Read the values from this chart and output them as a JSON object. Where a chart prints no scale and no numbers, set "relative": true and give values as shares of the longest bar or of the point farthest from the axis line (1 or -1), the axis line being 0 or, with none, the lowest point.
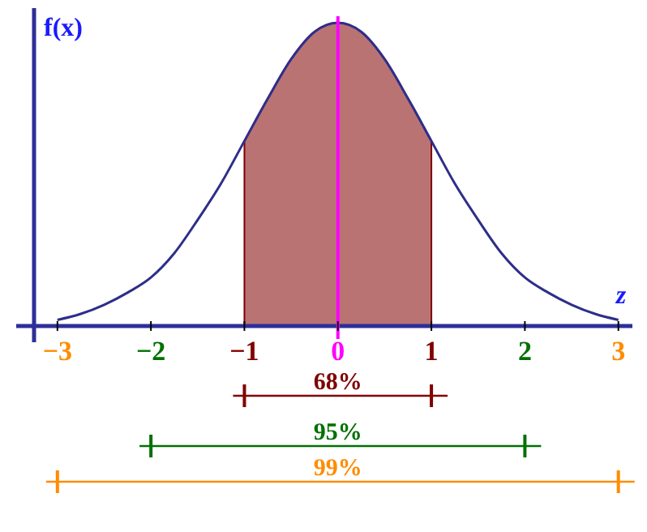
{
  "chart_data": {
    "type": "line",
    "relative": true,
    "xlabel": "z",
    "ylabel": "f(x)",
    "xlim": [
      -3.25,
      3.15
    ],
    "xticks": [
      {
        "value": -3,
        "label": "−3"
      },
      {
        "value": -2,
        "label": "−2"
      },
      {
        "value": -1,
        "label": "−1"
      },
      0,
      1,
      2,
      3
    ],
    "tick_labels": "x",
    "series": [
      {
        "type": "area",
        "color": "#800000",
        "x": [
          -1,
          -0.75,
          -0.5,
          -0.25,
          0,
          0.25,
          0.5,
          0.75,
          1
        ],
        "values": [
          0.61,
          0.75,
          0.88,
          0.97,
          1,
          0.97,
          0.88,
          0.75,
          0.61
        ]
      },
      {
        "color": "#2e2e8a",
        "x": [
          -3,
          -2.75,
          -2.5,
          -2.25,
          -2,
          -1.75,
          -1.5,
          -1.25,
          -1,
          -0.75,
          -0.5,
          -0.25,
          0,
          0.25,
          0.5,
          0.75,
          1,
          1.25,
          1.5,
          1.75,
          2,
          2.25,
          2.5,
          2.75,
          3
        ],
        "values": [
          0.02,
          0.04,
          0.07,
          0.11,
          0.16,
          0.24,
          0.35,
          0.47,
          0.61,
          0.75,
          0.88,
          0.97,
          1,
          0.97,
          0.88,
          0.75,
          0.61,
          0.47,
          0.35,
          0.24,
          0.16,
          0.11,
          0.07,
          0.04,
          0.02
        ]
      }
    ],
    "ref_lines": [
      {
        "axis": "x",
        "value": 0,
        "color": "#ff00ff"
      }
    ],
    "annotations": [
      "68%",
      "95%",
      "99%"
    ]
  }
}
